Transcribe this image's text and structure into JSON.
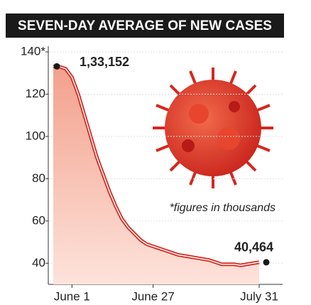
{
  "chart_data": {
    "type": "line",
    "title": "SEVEN-DAY AVERAGE OF NEW CASES",
    "annotation": "*figures in thousands",
    "categories": [
      null,
      null,
      null,
      "June 1",
      null,
      null,
      null,
      null,
      null,
      null,
      null,
      null,
      null,
      null,
      null,
      null,
      "June 27",
      null,
      null,
      null,
      null,
      null,
      null,
      null,
      null,
      null,
      null,
      null,
      null,
      null,
      null,
      null,
      null,
      "July 31"
    ],
    "series": [
      {
        "color": "#d7261e",
        "values": [
          133.152,
          133,
          132,
          128,
          120,
          110,
          100,
          90,
          82,
          74,
          67,
          61,
          57,
          54,
          51,
          49,
          48,
          47,
          46,
          45,
          44,
          43.5,
          43,
          42.5,
          42,
          41.5,
          40.5,
          39.5,
          39.5,
          39.5,
          39,
          39.5,
          40,
          40.464
        ],
        "value_labels": [
          "1,33,152",
          null,
          null,
          null,
          null,
          null,
          null,
          null,
          null,
          null,
          null,
          null,
          null,
          null,
          null,
          null,
          null,
          null,
          null,
          null,
          null,
          null,
          null,
          null,
          null,
          null,
          null,
          null,
          null,
          null,
          null,
          null,
          null,
          "40,464"
        ]
      }
    ],
    "ylim": [
      30,
      140
    ],
    "yticks": [
      {
        "value": 140,
        "label": "140*"
      },
      120,
      100,
      80,
      60,
      40
    ]
  }
}
